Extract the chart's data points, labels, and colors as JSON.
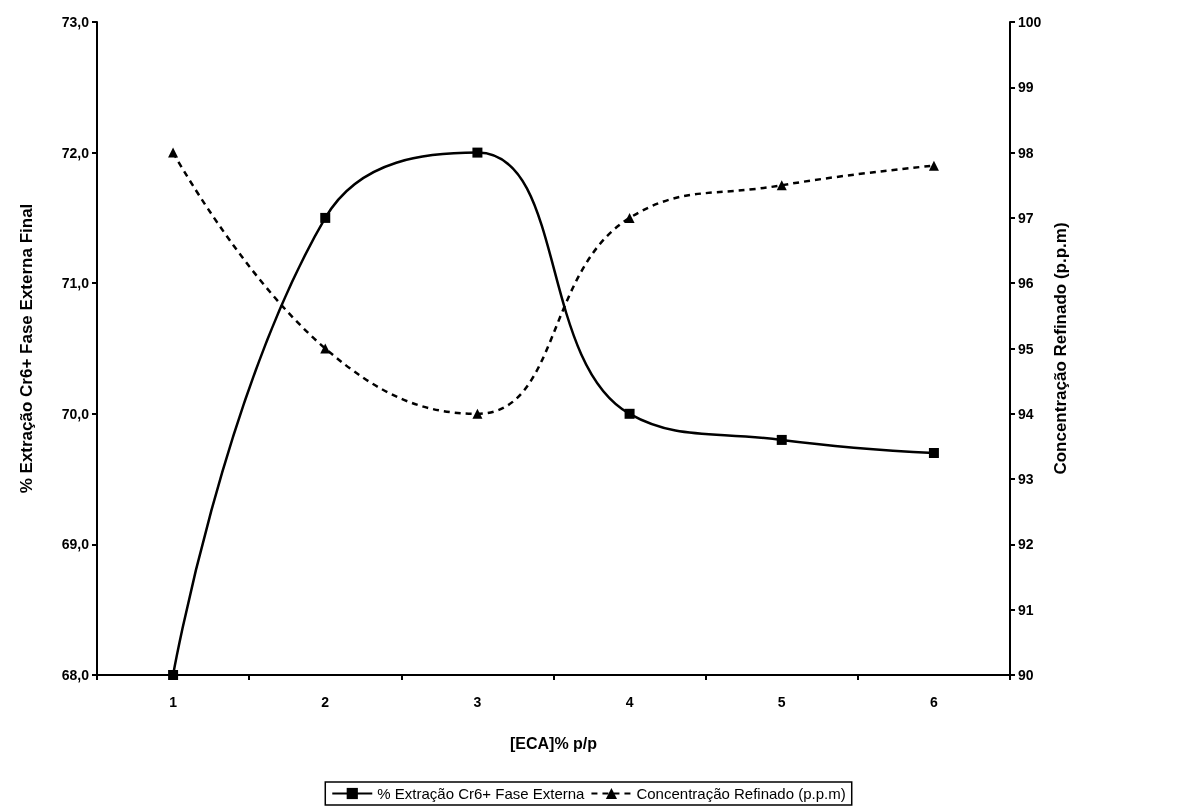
{
  "chart_data": {
    "type": "line",
    "xlabel": "[ECA]% p/p",
    "ylabel": "% Extração Cr6+ Fase Externa Final",
    "y2label": "Concentração Refinado (p.p.m)",
    "categories": [
      "1",
      "2",
      "3",
      "4",
      "5",
      "6"
    ],
    "series": [
      {
        "name": "% Extração Cr6+ Fase Externa",
        "color": "#000000",
        "values": [
          68.0,
          71.5,
          72.0,
          70.0,
          69.8,
          69.7
        ],
        "marker": "square",
        "line_style": "solid"
      },
      {
        "name": "Concentração Refinado (p.p.m)",
        "color": "#000000",
        "values": [
          98.0,
          95.0,
          94.0,
          97.0,
          97.5,
          97.8
        ],
        "marker": "triangle",
        "line_style": "dashed",
        "axis": "y2"
      }
    ],
    "ylim": [
      68,
      73
    ],
    "yticks": [
      {
        "value": 68,
        "label": "68,0"
      },
      {
        "value": 69,
        "label": "69,0"
      },
      {
        "value": 70,
        "label": "70,0"
      },
      {
        "value": 71,
        "label": "71,0"
      },
      {
        "value": 72,
        "label": "72,0"
      },
      {
        "value": 73,
        "label": "73,0"
      }
    ],
    "y2lim": [
      90,
      100
    ],
    "y2ticks": [
      90,
      91,
      92,
      93,
      94,
      95,
      96,
      97,
      98,
      99,
      100
    ],
    "grid": false,
    "legend": "bottom"
  }
}
